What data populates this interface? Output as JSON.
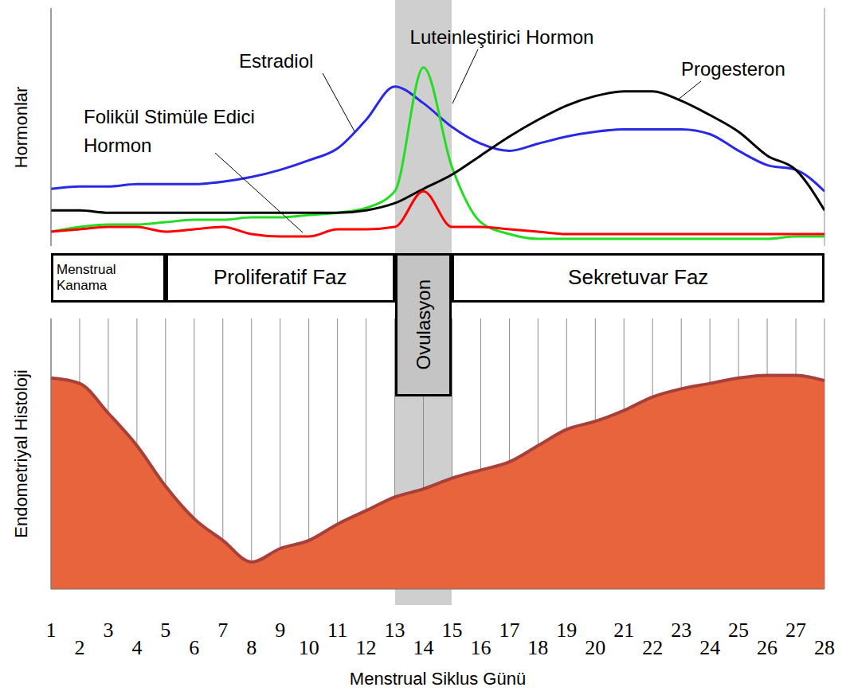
{
  "chart_data": {
    "type": "line",
    "y_label": "Hormonlar",
    "x_label": "Menstrual Siklus Günü",
    "x": [
      1,
      2,
      3,
      4,
      5,
      6,
      7,
      8,
      9,
      10,
      11,
      12,
      13,
      14,
      15,
      16,
      17,
      18,
      19,
      20,
      21,
      22,
      23,
      24,
      25,
      26,
      27,
      28
    ],
    "xlim": [
      1,
      28
    ],
    "xticks": [
      1,
      2,
      3,
      4,
      5,
      6,
      7,
      8,
      9,
      10,
      11,
      12,
      13,
      14,
      15,
      16,
      17,
      18,
      19,
      20,
      21,
      22,
      23,
      24,
      25,
      26,
      27,
      28
    ],
    "ylim": [
      0,
      100
    ],
    "yticks": [],
    "tick_labels": "x",
    "grid": true,
    "series": [
      {
        "name": "Estradiol",
        "color": "#2a2ae6",
        "values": [
          24,
          25,
          25,
          26,
          26,
          26,
          27,
          29,
          32,
          36,
          41,
          53,
          67,
          60,
          50,
          43,
          40,
          43,
          46,
          48,
          49,
          49,
          49,
          47,
          40,
          34,
          32,
          23
        ]
      },
      {
        "name": "Luteinleştirici Hormon",
        "color": "#22dd22",
        "values": [
          6,
          8,
          9,
          9,
          10,
          11,
          11,
          12,
          12,
          13,
          14,
          16,
          23,
          75,
          33,
          10,
          5,
          3,
          3,
          3,
          3,
          3,
          3,
          3,
          3,
          3,
          4,
          4
        ]
      },
      {
        "name": "Progesteron",
        "color": "#000000",
        "values": [
          15,
          15,
          14,
          14,
          14,
          14,
          14,
          14,
          14,
          14,
          14,
          15,
          18,
          24,
          30,
          38,
          46,
          53,
          59,
          63,
          65,
          65,
          61,
          55,
          48,
          38,
          32,
          15
        ]
      },
      {
        "name": "Folikül Stimüle Edici Hormon",
        "color": "#ff0000",
        "values": [
          6,
          7,
          8,
          8,
          6,
          7,
          8,
          5,
          4,
          4,
          7,
          7,
          8,
          23,
          8,
          8,
          7,
          6,
          5,
          5,
          5,
          5,
          5,
          5,
          5,
          5,
          5,
          5
        ]
      }
    ]
  },
  "phases": [
    {
      "label": "Menstrual Kanama",
      "start": 1,
      "end": 5
    },
    {
      "label": "Proliferatif Faz",
      "start": 5,
      "end": 13
    },
    {
      "label": "Ovulasyon",
      "start": 13,
      "end": 15,
      "highlight": true
    },
    {
      "label": "Sekretuvar Faz",
      "start": 15,
      "end": 28
    }
  ],
  "histology": {
    "label": "Endometriyal Histoloji",
    "ylim": [
      0,
      100
    ],
    "yticks": [],
    "color": "#e8643c",
    "values": [
      78,
      76,
      65,
      53,
      38,
      26,
      18,
      10,
      15,
      18,
      24,
      29,
      34,
      37,
      41,
      44,
      47,
      53,
      59,
      62,
      66,
      71,
      74,
      76,
      78,
      79,
      79,
      77
    ]
  }
}
